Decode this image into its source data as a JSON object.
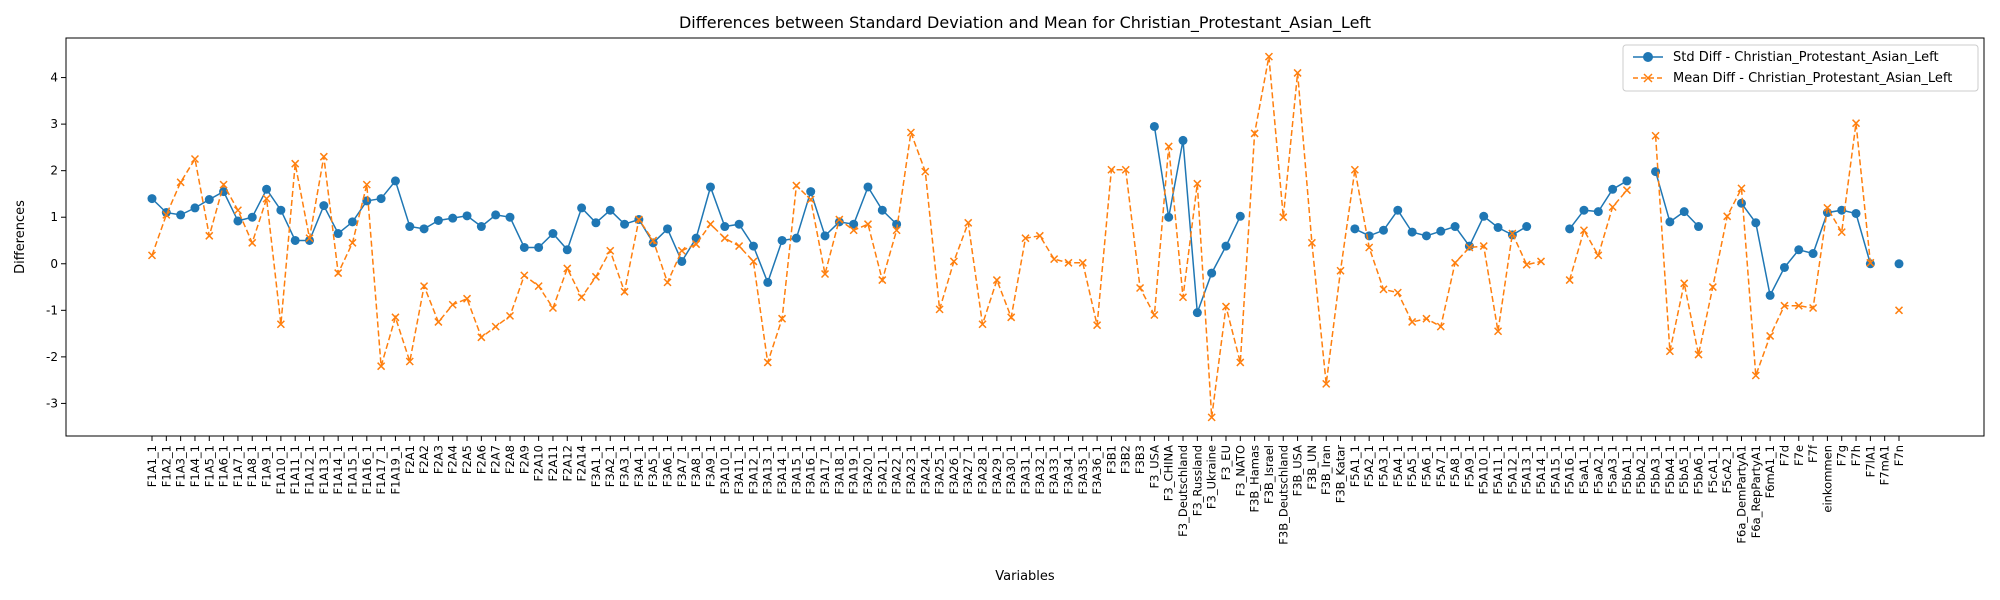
{
  "chart_data": {
    "type": "line",
    "title": "Differences between Standard Deviation and Mean for Christian_Protestant_Asian_Left",
    "xlabel": "Variables",
    "ylabel": "Differences",
    "ylim": [
      -3.7,
      4.85
    ],
    "yticks": [
      -3,
      -2,
      -1,
      0,
      1,
      2,
      3,
      4
    ],
    "grid": false,
    "legend_position": "top-right",
    "categories": [
      "F1A1_1",
      "F1A2_1",
      "F1A3_1",
      "F1A4_1",
      "F1A5_1",
      "F1A6_1",
      "F1A7_1",
      "F1A8_1",
      "F1A9_1",
      "F1A10_1",
      "F1A11_1",
      "F1A12_1",
      "F1A13_1",
      "F1A14_1",
      "F1A15_1",
      "F1A16_1",
      "F1A17_1",
      "F1A19_1",
      "F2A1",
      "F2A2",
      "F2A3",
      "F2A4",
      "F2A5",
      "F2A6",
      "F2A7",
      "F2A8",
      "F2A9",
      "F2A10",
      "F2A11",
      "F2A12",
      "F2A14",
      "F3A1_1",
      "F3A2_1",
      "F3A3_1",
      "F3A4_1",
      "F3A5_1",
      "F3A6_1",
      "F3A7_1",
      "F3A8_1",
      "F3A9_1",
      "F3A10_1",
      "F3A11_1",
      "F3A12_1",
      "F3A13_1",
      "F3A14_1",
      "F3A15_1",
      "F3A16_1",
      "F3A17_1",
      "F3A18_1",
      "F3A19_1",
      "F3A20_1",
      "F3A21_1",
      "F3A22_1",
      "F3A23_1",
      "F3A24_1",
      "F3A25_1",
      "F3A26_1",
      "F3A27_1",
      "F3A28_1",
      "F3A29_1",
      "F3A30_1",
      "F3A31_1",
      "F3A32_1",
      "F3A33_1",
      "F3A34_1",
      "F3A35_1",
      "F3A36_1",
      "F3B1",
      "F3B2",
      "F3B3",
      "F3_USA",
      "F3_CHINA",
      "F3_Deutschland",
      "F3_Russland",
      "F3_Ukraine",
      "F3_EU",
      "F3_NATO",
      "F3B_Hamas",
      "F3B_Israel",
      "F3B_Deutschland",
      "F3B_USA",
      "F3B_UN",
      "F3B_Iran",
      "F3B_Katar",
      "F5A1_1",
      "F5A2_1",
      "F5A3_1",
      "F5A4_1",
      "F5A5_1",
      "F5A6_1",
      "F5A7_1",
      "F5A8_1",
      "F5A9_1",
      "F5A10_1",
      "F5A11_1",
      "F5A12_1",
      "F5A13_1",
      "F5A14_1",
      "F5A15_1",
      "F5A16_1",
      "F5aA1_1",
      "F5aA2_1",
      "F5aA3_1",
      "F5bA1_1",
      "F5bA2_1",
      "F5bA3_1",
      "F5bA4_1",
      "F5bA5_1",
      "F5bA6_1",
      "F5cA1_1",
      "F5cA2_1",
      "F6a_DemPartyA1",
      "F6a_RepPartyA1",
      "F6mA1_1",
      "F7d",
      "F7e",
      "F7f",
      "einkommen",
      "F7g",
      "F7h",
      "F7lA1",
      "F7mA1",
      "F7n"
    ],
    "series": [
      {
        "name": "Std Diff - Christian_Protestant_Asian_Left",
        "color": "#1f77b4",
        "marker": "circle",
        "linestyle": "solid",
        "values": [
          1.4,
          1.1,
          1.05,
          1.2,
          1.38,
          1.55,
          0.92,
          1.0,
          1.6,
          1.15,
          0.5,
          0.5,
          1.25,
          0.65,
          0.9,
          1.35,
          1.4,
          1.78,
          0.8,
          0.75,
          0.93,
          0.98,
          1.03,
          0.8,
          1.05,
          1.0,
          0.35,
          0.35,
          0.65,
          0.3,
          1.2,
          0.88,
          1.15,
          0.85,
          0.95,
          0.45,
          0.75,
          0.05,
          0.55,
          1.65,
          0.8,
          0.85,
          0.38,
          -0.4,
          0.5,
          0.55,
          1.55,
          0.6,
          0.9,
          0.85,
          1.65,
          1.15,
          0.85,
          null,
          null,
          null,
          null,
          null,
          null,
          null,
          null,
          null,
          null,
          null,
          null,
          null,
          null,
          null,
          null,
          null,
          2.95,
          1.0,
          2.65,
          -1.05,
          -0.2,
          0.38,
          1.02,
          null,
          null,
          null,
          null,
          null,
          null,
          null,
          0.75,
          0.6,
          0.72,
          1.15,
          0.68,
          0.6,
          0.7,
          0.8,
          0.38,
          1.02,
          0.78,
          0.62,
          0.8,
          null,
          null,
          0.75,
          1.15,
          1.12,
          1.6,
          1.78,
          null,
          1.98,
          0.9,
          1.12,
          0.8,
          null,
          null,
          1.3,
          0.88,
          -0.68,
          -0.08,
          0.3,
          0.22,
          1.1,
          1.15,
          1.08,
          0.0,
          null,
          0.0
        ]
      },
      {
        "name": "Mean Diff - Christian_Protestant_Asian_Left",
        "color": "#ff7f0e",
        "marker": "x",
        "linestyle": "dashed",
        "values": [
          0.18,
          1.05,
          1.75,
          2.25,
          0.6,
          1.7,
          1.15,
          0.45,
          1.4,
          -1.3,
          2.15,
          0.55,
          2.3,
          -0.2,
          0.45,
          1.7,
          -2.2,
          -1.15,
          -2.1,
          -0.48,
          -1.25,
          -0.88,
          -0.75,
          -1.58,
          -1.35,
          -1.12,
          -0.25,
          -0.48,
          -0.95,
          -0.1,
          -0.72,
          -0.28,
          0.28,
          -0.6,
          0.95,
          0.5,
          -0.4,
          0.28,
          0.42,
          0.85,
          0.55,
          0.38,
          0.05,
          -2.12,
          -1.18,
          1.68,
          1.38,
          -0.22,
          0.95,
          0.72,
          0.85,
          -0.35,
          0.72,
          2.82,
          1.98,
          -0.98,
          0.05,
          0.88,
          -1.3,
          -0.35,
          -1.15,
          0.55,
          0.6,
          0.1,
          0.02,
          0.02,
          -1.32,
          2.02,
          2.02,
          -0.52,
          -1.1,
          2.52,
          -0.72,
          1.72,
          -3.3,
          -0.92,
          -2.12,
          2.8,
          4.45,
          1.0,
          4.1,
          0.45,
          -2.58,
          -0.15,
          2.02,
          0.35,
          -0.55,
          -0.62,
          -1.25,
          -1.18,
          -1.35,
          0.02,
          0.35,
          0.38,
          -1.45,
          0.65,
          -0.02,
          0.05,
          null,
          -0.35,
          0.72,
          0.18,
          1.22,
          1.58,
          null,
          2.75,
          -1.88,
          -0.42,
          -1.95,
          -0.5,
          1.02,
          1.62,
          -2.4,
          -1.55,
          -0.9,
          -0.9,
          -0.95,
          1.2,
          0.68,
          3.02,
          0.02,
          null,
          -1.0
        ]
      }
    ]
  }
}
